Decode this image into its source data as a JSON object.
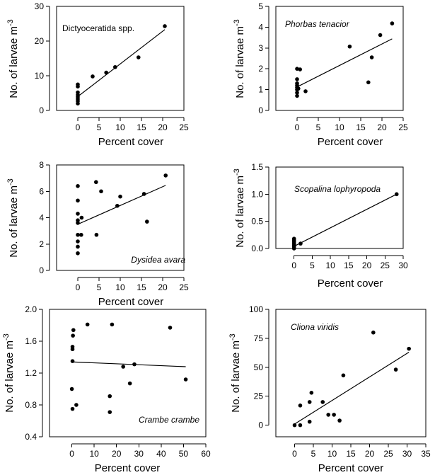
{
  "chart_data": [
    {
      "type": "scatter",
      "title": "Dictyoceratida spp.",
      "title_italic": false,
      "title_placement": "top-left",
      "xlabel": "Percent cover",
      "ylabel": "No. of larvae m",
      "ylabel_superscript": "-3",
      "xlim": [
        -5,
        25
      ],
      "ylim": [
        0,
        30
      ],
      "xticks": [
        0,
        5,
        10,
        15,
        20,
        25
      ],
      "yticks": [
        0,
        10,
        20,
        30
      ],
      "ytick_labels": [
        "0",
        "10",
        "20",
        "30"
      ],
      "points": [
        [
          0,
          2.0
        ],
        [
          0,
          2.7
        ],
        [
          0,
          3.3
        ],
        [
          0,
          3.9
        ],
        [
          0,
          4.5
        ],
        [
          0,
          5.2
        ],
        [
          0,
          6.9
        ],
        [
          0,
          7.5
        ],
        [
          3.5,
          9.8
        ],
        [
          6.7,
          10.9
        ],
        [
          8.8,
          12.5
        ],
        [
          14.3,
          15.3
        ],
        [
          20.5,
          24.3
        ]
      ],
      "fit_line": [
        [
          0,
          4.0
        ],
        [
          20.5,
          23.3
        ]
      ]
    },
    {
      "type": "scatter",
      "title": "Phorbas tenacior",
      "title_italic": true,
      "title_placement": "top-left",
      "xlabel": "Percent cover",
      "ylabel": "No. of larvae m",
      "ylabel_superscript": "-3",
      "xlim": [
        -5,
        25
      ],
      "ylim": [
        0,
        5
      ],
      "xticks": [
        0,
        5,
        10,
        15,
        20,
        25
      ],
      "yticks": [
        0,
        1,
        2,
        3,
        4,
        5
      ],
      "ytick_labels": [
        "0",
        "1",
        "2",
        "3",
        "4",
        "5"
      ],
      "points": [
        [
          0,
          0.7
        ],
        [
          0,
          0.85
        ],
        [
          0,
          1.0
        ],
        [
          0,
          1.1
        ],
        [
          0,
          1.2
        ],
        [
          0,
          1.3
        ],
        [
          0,
          1.5
        ],
        [
          0,
          2.0
        ],
        [
          0.3,
          1.05
        ],
        [
          0.7,
          1.97
        ],
        [
          2.0,
          0.92
        ],
        [
          12.4,
          3.07
        ],
        [
          16.8,
          1.35
        ],
        [
          17.6,
          2.55
        ],
        [
          19.6,
          3.62
        ],
        [
          22.4,
          4.18
        ]
      ],
      "fit_line": [
        [
          0,
          1.13
        ],
        [
          22.4,
          3.44
        ]
      ]
    },
    {
      "type": "scatter",
      "title": "Dysidea avara",
      "title_italic": true,
      "title_placement": "bottom-right",
      "xlabel": "Percent cover",
      "ylabel": "No. of larvae m",
      "ylabel_superscript": "-3",
      "xlim": [
        -5,
        25
      ],
      "ylim": [
        0,
        8
      ],
      "xticks": [
        0,
        5,
        10,
        15,
        20,
        25
      ],
      "yticks": [
        0,
        2,
        4,
        6,
        8
      ],
      "ytick_labels": [
        "0",
        "2",
        "4",
        "6",
        "8"
      ],
      "points": [
        [
          0,
          1.3
        ],
        [
          0,
          1.8
        ],
        [
          0,
          2.2
        ],
        [
          0,
          2.7
        ],
        [
          0,
          3.6
        ],
        [
          0,
          3.8
        ],
        [
          0,
          4.3
        ],
        [
          0,
          5.3
        ],
        [
          0,
          6.4
        ],
        [
          0.8,
          2.7
        ],
        [
          0.9,
          4.0
        ],
        [
          4.3,
          6.7
        ],
        [
          4.4,
          2.7
        ],
        [
          5.5,
          6.0
        ],
        [
          9.3,
          4.9
        ],
        [
          10.0,
          5.6
        ],
        [
          15.6,
          5.8
        ],
        [
          16.3,
          3.7
        ],
        [
          20.7,
          7.2
        ]
      ],
      "fit_line": [
        [
          0,
          3.5
        ],
        [
          20.7,
          6.45
        ]
      ]
    },
    {
      "type": "scatter",
      "title": "Scopalina lophyropoda",
      "title_italic": true,
      "title_placement": "top-right",
      "xlabel": "Percent cover",
      "ylabel": "No. of larvae m",
      "ylabel_superscript": "-3",
      "xlim": [
        -5,
        30
      ],
      "ylim": [
        0,
        1.5
      ],
      "xticks": [
        0,
        5,
        10,
        15,
        20,
        25,
        30
      ],
      "yticks": [
        0,
        0.5,
        1.0,
        1.5
      ],
      "ytick_labels": [
        "0.0",
        "0.5",
        "1.0",
        "1.5"
      ],
      "points": [
        [
          0,
          0.0
        ],
        [
          0,
          0.03
        ],
        [
          0,
          0.06
        ],
        [
          0,
          0.09
        ],
        [
          0,
          0.12
        ],
        [
          0,
          0.15
        ],
        [
          0,
          0.18
        ],
        [
          1.8,
          0.09
        ],
        [
          28.2,
          1.0
        ]
      ],
      "fit_line": [
        [
          0,
          0.04
        ],
        [
          28.2,
          1.0
        ]
      ]
    },
    {
      "type": "scatter",
      "title": "Crambe crambe",
      "title_italic": true,
      "title_placement": "bottom-right",
      "xlabel": "Percent cover",
      "ylabel": "No. of larvae m",
      "ylabel_superscript": "-3",
      "xlim": [
        -10,
        60
      ],
      "ylim": [
        0.4,
        2.0
      ],
      "xticks": [
        0,
        10,
        20,
        30,
        40,
        50,
        60
      ],
      "yticks": [
        0.4,
        0.8,
        1.2,
        1.6,
        2.0
      ],
      "ytick_labels": [
        "0.4",
        "0.8",
        "1.2",
        "1.6",
        "2.0"
      ],
      "points": [
        [
          0,
          1.0
        ],
        [
          0.3,
          0.75
        ],
        [
          0.3,
          1.35
        ],
        [
          0.3,
          1.5
        ],
        [
          0.3,
          1.53
        ],
        [
          0.5,
          1.67
        ],
        [
          0.7,
          1.74
        ],
        [
          2.0,
          0.8
        ],
        [
          7.0,
          1.81
        ],
        [
          17.0,
          0.71
        ],
        [
          17.0,
          0.91
        ],
        [
          18.0,
          1.81
        ],
        [
          23.0,
          1.28
        ],
        [
          26.0,
          1.07
        ],
        [
          28.0,
          1.31
        ],
        [
          44.0,
          1.77
        ],
        [
          51.0,
          1.12
        ]
      ],
      "fit_line": [
        [
          0,
          1.34
        ],
        [
          51.0,
          1.28
        ]
      ]
    },
    {
      "type": "scatter",
      "title": "Cliona viridis",
      "title_italic": true,
      "title_placement": "top-left",
      "xlabel": "Percent cover",
      "ylabel": "No. of larvae m",
      "ylabel_superscript": "-3",
      "xlim": [
        -5,
        35
      ],
      "ylim": [
        -10,
        100
      ],
      "xticks": [
        0,
        5,
        10,
        15,
        20,
        25,
        30,
        35
      ],
      "yticks": [
        0,
        25,
        50,
        75,
        100
      ],
      "ytick_labels": [
        "0",
        "25",
        "50",
        "75",
        "100"
      ],
      "points": [
        [
          0,
          0
        ],
        [
          1.5,
          0
        ],
        [
          1.5,
          17
        ],
        [
          4.0,
          3
        ],
        [
          4.0,
          20
        ],
        [
          4.5,
          28
        ],
        [
          7.5,
          20
        ],
        [
          9.0,
          9
        ],
        [
          10.5,
          9
        ],
        [
          12.0,
          4
        ],
        [
          13.0,
          43
        ],
        [
          21.0,
          80
        ],
        [
          27.0,
          48
        ],
        [
          30.5,
          66
        ]
      ],
      "fit_line": [
        [
          0,
          1.0
        ],
        [
          30.5,
          63.0
        ]
      ]
    }
  ]
}
